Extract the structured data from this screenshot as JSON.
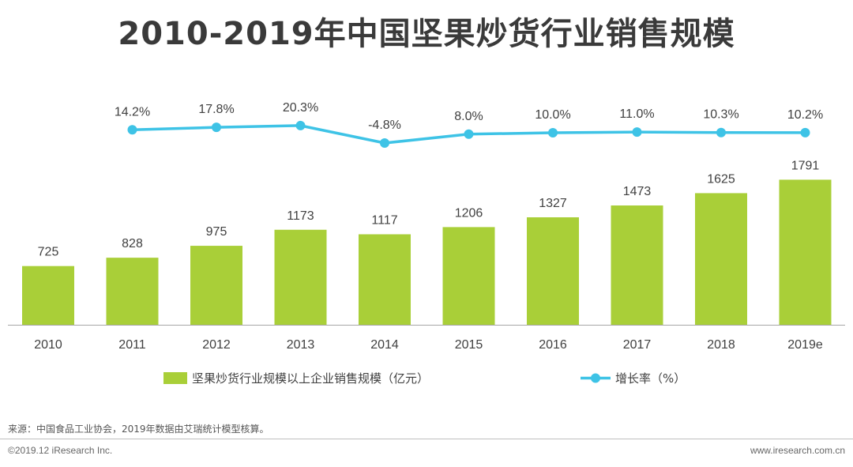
{
  "title": "2010-2019年中国坚果炒货行业销售规模",
  "source": "来源：中国食品工业协会，2019年数据由艾瑞统计模型核算。",
  "copyright": "©2019.12 iResearch Inc.",
  "website": "www.iresearch.com.cn",
  "colors": {
    "bar": "#a9cf38",
    "line": "#3ec3e6",
    "axis": "#a6a6a6",
    "text": "#404040"
  },
  "chart_data": {
    "type": "bar",
    "categories": [
      "2010",
      "2011",
      "2012",
      "2013",
      "2014",
      "2015",
      "2016",
      "2017",
      "2018",
      "2019e"
    ],
    "series": [
      {
        "name": "坚果炒货行业规模以上企业销售规模（亿元）",
        "type": "bar",
        "values": [
          725,
          828,
          975,
          1173,
          1117,
          1206,
          1327,
          1473,
          1625,
          1791
        ],
        "labels": [
          "725",
          "828",
          "975",
          "1173",
          "1117",
          "1206",
          "1327",
          "1473",
          "1625",
          "1791"
        ]
      },
      {
        "name": "增长率（%）",
        "type": "line",
        "x": [
          "2011",
          "2012",
          "2013",
          "2014",
          "2015",
          "2016",
          "2017",
          "2018",
          "2019e"
        ],
        "values": [
          14.2,
          17.8,
          20.3,
          -4.8,
          8.0,
          10.0,
          11.0,
          10.3,
          10.2
        ],
        "labels": [
          "14.2%",
          "17.8%",
          "20.3%",
          "-4.8%",
          "8.0%",
          "10.0%",
          "11.0%",
          "10.3%",
          "10.2%"
        ]
      }
    ],
    "legend_position": "bottom",
    "grid": false
  }
}
